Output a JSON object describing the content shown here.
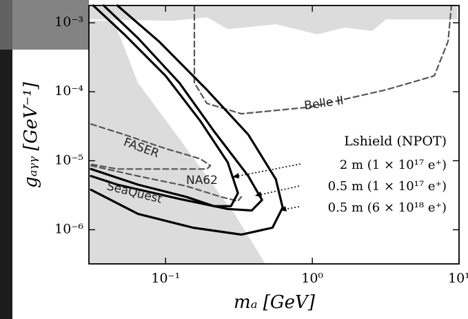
{
  "chart_data": {
    "type": "line",
    "xlabel": "mₐ [GeV]",
    "ylabel": "gₐᵧᵧ [GeV⁻¹]",
    "xscale": "log",
    "yscale": "log",
    "xlim": [
      0.03,
      10
    ],
    "ylim": [
      3.2e-07,
      0.00178
    ],
    "xticks": [
      {
        "value": 0.1,
        "label": "10⁻¹"
      },
      {
        "value": 1,
        "label": "10⁰"
      },
      {
        "value": 10,
        "label": "10¹"
      }
    ],
    "yticks": [
      {
        "value": 1e-06,
        "label": "10⁻⁶"
      },
      {
        "value": 1e-05,
        "label": "10⁻⁵"
      },
      {
        "value": 0.0001,
        "label": "10⁻⁴"
      },
      {
        "value": 0.001,
        "label": "10⁻³"
      }
    ],
    "legend_title": "Lshield (NPOT)",
    "annotations": [
      "Belle II",
      "FASER",
      "NA62",
      "SeaQuest"
    ],
    "series": [
      {
        "style": "fill",
        "color": "#dcdcdc",
        "x": [
          0.0301,
          0.0444,
          0.0648,
          0.124,
          0.213,
          0.295,
          0.479,
          0.0301
        ],
        "y": [
          0.00107,
          0.00107,
          0.000135,
          2.1e-05,
          4.3e-06,
          1.7e-06,
          3.2e-07,
          3.2e-07
        ]
      },
      {
        "style": "fill",
        "color": "#dcdcdc",
        "x": [
          0.0301,
          9.7,
          9.7,
          3.18,
          2.56,
          1.66,
          1.08,
          0.564,
          0.265,
          0.191,
          0.111,
          0.0301
        ],
        "y": [
          0.00178,
          0.00178,
          0.00112,
          0.00112,
          0.00076,
          0.00085,
          0.00068,
          0.00095,
          0.00081,
          0.0012,
          0.00107,
          0.00112
        ]
      },
      {
        "name": "Belle II",
        "style": "dashed",
        "color": "#555555",
        "x": [
          0.157,
          0.157,
          0.191,
          0.328,
          0.968,
          3.18,
          6.78,
          8.42,
          8.88
        ],
        "y": [
          0.00178,
          0.000135,
          6.8e-05,
          4.8e-05,
          6e-05,
          0.000107,
          0.00017,
          0.00054,
          0.00178
        ]
      },
      {
        "name": "FASER",
        "style": "dashed",
        "color": "#555555",
        "x": [
          0.031,
          0.0522,
          0.1,
          0.172,
          0.202,
          0.191,
          0.124,
          0.0469,
          0.031
        ],
        "y": [
          3.4e-05,
          2.4e-05,
          1.5e-05,
          1.07e-05,
          8.5e-06,
          7.6e-06,
          7.6e-06,
          7.6e-06,
          8.9e-06
        ]
      },
      {
        "name": "NA62",
        "style": "dashed",
        "color": "#555555",
        "x": [
          0.031,
          0.0648,
          0.138,
          0.238,
          0.311,
          0.328
        ],
        "y": [
          8.5e-06,
          6e-06,
          4.3e-06,
          3e-06,
          2.6e-06,
          3e-06
        ]
      },
      {
        "name": "2 m (1 × 10¹⁷ e⁺)",
        "style": "solid",
        "color": "#000000",
        "x": [
          0.0321,
          0.0522,
          0.1,
          0.172,
          0.265,
          0.311,
          0.279,
          0.213,
          0.138,
          0.0648,
          0.031
        ],
        "y": [
          0.00178,
          0.00068,
          0.00017,
          3.8e-05,
          9.5e-06,
          3.4e-06,
          2.2e-06,
          2.2e-06,
          3e-06,
          4.5e-06,
          7.6e-06
        ]
      },
      {
        "name": "0.5 m (1 × 10¹⁷ e⁺)",
        "style": "solid",
        "color": "#000000",
        "x": [
          0.0378,
          0.0648,
          0.124,
          0.213,
          0.366,
          0.454,
          0.386,
          0.265,
          0.124,
          0.0469,
          0.031
        ],
        "y": [
          0.00178,
          0.0006,
          0.000135,
          2.7e-05,
          6e-06,
          2.7e-06,
          1.9e-06,
          2e-06,
          2.8e-06,
          4.5e-06,
          6e-06
        ]
      },
      {
        "name": "0.5 m (6 × 10¹⁸ e⁺)",
        "style": "solid",
        "color": "#000000",
        "x": [
          0.0469,
          0.0898,
          0.191,
          0.366,
          0.564,
          0.628,
          0.535,
          0.328,
          0.154,
          0.0648,
          0.031
        ],
        "y": [
          0.00178,
          0.00054,
          0.000107,
          2.4e-05,
          5.4e-06,
          2.1e-06,
          1.07e-06,
          8.5e-07,
          1.07e-06,
          1.7e-06,
          3.8e-06
        ]
      }
    ]
  }
}
